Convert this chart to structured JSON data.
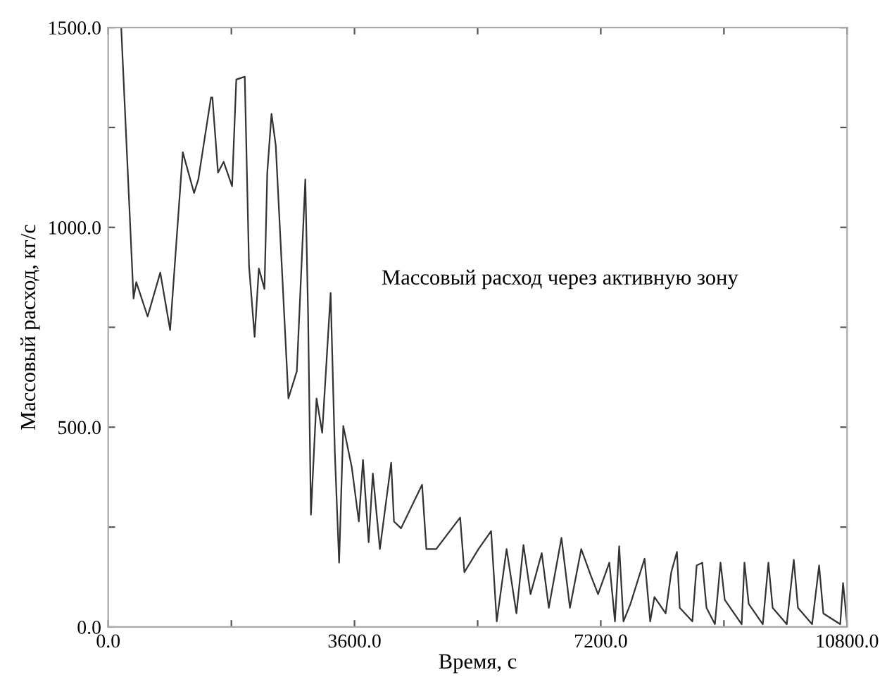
{
  "chart_data": {
    "type": "line",
    "xlabel": "Время, с",
    "ylabel": "Массовый расход, кг/с",
    "annotations": [
      "Массовый расход через активную зону"
    ],
    "xlim": [
      0,
      10800
    ],
    "ylim": [
      0,
      1500
    ],
    "xticks": [
      {
        "value": 0,
        "label": "0.0"
      },
      {
        "value": 1800,
        "label": null
      },
      {
        "value": 3600,
        "label": "3600.0"
      },
      {
        "value": 5400,
        "label": null
      },
      {
        "value": 7200,
        "label": "7200.0"
      },
      {
        "value": 9000,
        "label": null
      },
      {
        "value": 10800,
        "label": "10800.0"
      }
    ],
    "yticks": [
      {
        "value": 0,
        "label": "0.0"
      },
      {
        "value": 250,
        "label": null
      },
      {
        "value": 500,
        "label": "500.0"
      },
      {
        "value": 750,
        "label": null
      },
      {
        "value": 1000,
        "label": "1000.0"
      },
      {
        "value": 1250,
        "label": null
      },
      {
        "value": 1500,
        "label": "1500.0"
      }
    ],
    "grid": false,
    "marker": "none",
    "line_style": "solid",
    "series": [
      {
        "color": "#333333",
        "x": [
          190,
          370,
          410,
          576,
          761,
          905,
          1090,
          1255,
          1317,
          1502,
          1523,
          1605,
          1687,
          1811,
          1872,
          1996,
          2058,
          2140,
          2202,
          2284,
          2325,
          2387,
          2449,
          2634,
          2757,
          2881,
          2922,
          2963,
          3045,
          3128,
          3251,
          3313,
          3375,
          3436,
          3560,
          3663,
          3724,
          3807,
          3868,
          3971,
          4136,
          4177,
          4280,
          4588,
          4650,
          4794,
          5144,
          5206,
          5412,
          5597,
          5679,
          5823,
          5967,
          6070,
          6173,
          6337,
          6440,
          6625,
          6749,
          6914,
          7058,
          7160,
          7325,
          7407,
          7469,
          7531,
          7634,
          7840,
          7922,
          7984,
          8148,
          8230,
          8313,
          8354,
          8539,
          8601,
          8683,
          8745,
          8868,
          8950,
          9012,
          9259,
          9300,
          9362,
          9568,
          9650,
          9712,
          9918,
          10021,
          10082,
          10288,
          10391,
          10453,
          10700,
          10741,
          10800
        ],
        "values": [
          1500,
          822,
          863,
          777,
          887,
          743,
          1188,
          1086,
          1120,
          1325,
          1325,
          1137,
          1164,
          1103,
          1370,
          1377,
          904,
          726,
          897,
          846,
          1137,
          1284,
          1205,
          572,
          640,
          1120,
          777,
          281,
          572,
          486,
          836,
          435,
          161,
          503,
          400,
          264,
          418,
          212,
          384,
          195,
          411,
          264,
          247,
          356,
          195,
          195,
          274,
          137,
          195,
          240,
          14,
          195,
          34,
          205,
          82,
          185,
          48,
          223,
          48,
          195,
          127,
          82,
          161,
          14,
          202,
          14,
          58,
          171,
          14,
          75,
          34,
          137,
          188,
          48,
          14,
          154,
          161,
          48,
          7,
          161,
          68,
          7,
          161,
          58,
          7,
          161,
          48,
          7,
          168,
          48,
          7,
          154,
          34,
          7,
          110,
          7
        ]
      }
    ]
  }
}
